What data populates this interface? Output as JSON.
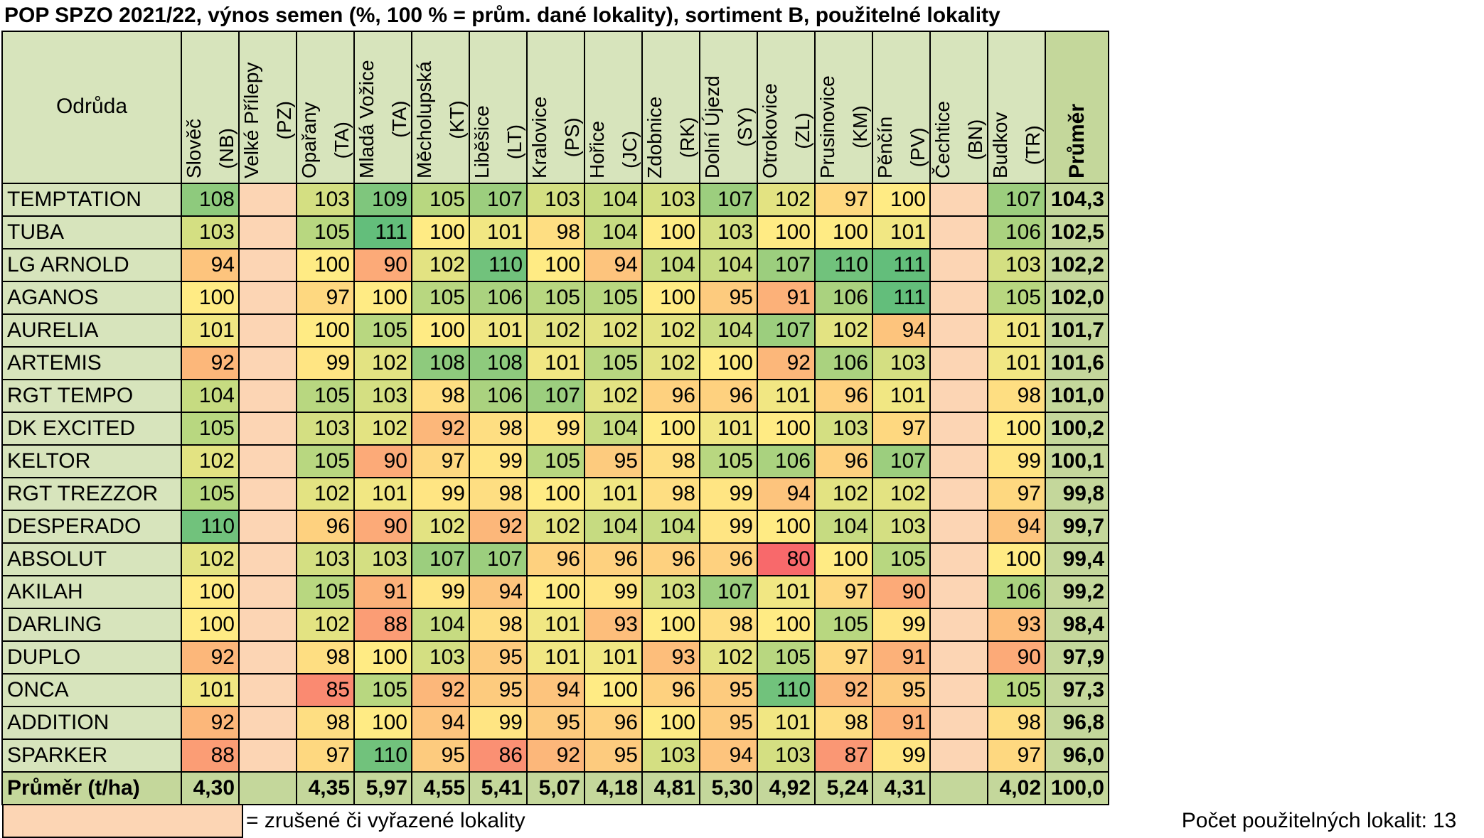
{
  "title": "POP SPZO 2021/22, výnos semen (%, 100 % = prům. dané lokality), sortiment B, použitelné lokality",
  "header": {
    "variety_label": "Odrůda",
    "average_label": "Průměr",
    "locations": [
      {
        "name": "Slověč",
        "code": "(NB)"
      },
      {
        "name": "Velké Přílepy",
        "code": "(PZ)"
      },
      {
        "name": "Opařany",
        "code": "(TA)"
      },
      {
        "name": "Mladá Vožice",
        "code": "(TA)"
      },
      {
        "name": "Měcholupská",
        "code": "(KT)"
      },
      {
        "name": "Liběšice",
        "code": "(LT)"
      },
      {
        "name": "Kralovice",
        "code": "(PS)"
      },
      {
        "name": "Hořice",
        "code": "(JC)"
      },
      {
        "name": "Zdobnice",
        "code": "(RK)"
      },
      {
        "name": "Dolní Újezd",
        "code": "(SY)"
      },
      {
        "name": "Otrokovice",
        "code": "(ZL)"
      },
      {
        "name": "Prusinovice",
        "code": "(KM)"
      },
      {
        "name": "Pěnčín",
        "code": "(PV)"
      },
      {
        "name": "Čechtice",
        "code": "(BN)"
      },
      {
        "name": "Budkov",
        "code": "(TR)"
      }
    ]
  },
  "rows": [
    {
      "variety": "TEMPTATION",
      "values": [
        "108",
        "",
        "103",
        "109",
        "105",
        "107",
        "103",
        "104",
        "103",
        "107",
        "102",
        "97",
        "100",
        "",
        "107"
      ],
      "avg": "104,3"
    },
    {
      "variety": "TUBA",
      "values": [
        "103",
        "",
        "105",
        "111",
        "100",
        "101",
        "98",
        "104",
        "100",
        "103",
        "100",
        "100",
        "101",
        "",
        "106"
      ],
      "avg": "102,5"
    },
    {
      "variety": "LG ARNOLD",
      "values": [
        "94",
        "",
        "100",
        "90",
        "102",
        "110",
        "100",
        "94",
        "104",
        "104",
        "107",
        "110",
        "111",
        "",
        "103"
      ],
      "avg": "102,2"
    },
    {
      "variety": "AGANOS",
      "values": [
        "100",
        "",
        "97",
        "100",
        "105",
        "106",
        "105",
        "105",
        "100",
        "95",
        "91",
        "106",
        "111",
        "",
        "105"
      ],
      "avg": "102,0"
    },
    {
      "variety": "AURELIA",
      "values": [
        "101",
        "",
        "100",
        "105",
        "100",
        "101",
        "102",
        "102",
        "102",
        "104",
        "107",
        "102",
        "94",
        "",
        "101"
      ],
      "avg": "101,7"
    },
    {
      "variety": "ARTEMIS",
      "values": [
        "92",
        "",
        "99",
        "102",
        "108",
        "108",
        "101",
        "105",
        "102",
        "100",
        "92",
        "106",
        "103",
        "",
        "101"
      ],
      "avg": "101,6"
    },
    {
      "variety": "RGT TEMPO",
      "values": [
        "104",
        "",
        "105",
        "103",
        "98",
        "106",
        "107",
        "102",
        "96",
        "96",
        "101",
        "96",
        "101",
        "",
        "98"
      ],
      "avg": "101,0"
    },
    {
      "variety": "DK EXCITED",
      "values": [
        "105",
        "",
        "103",
        "102",
        "92",
        "98",
        "99",
        "104",
        "100",
        "101",
        "100",
        "103",
        "97",
        "",
        "100"
      ],
      "avg": "100,2"
    },
    {
      "variety": "KELTOR",
      "values": [
        "102",
        "",
        "105",
        "90",
        "97",
        "99",
        "105",
        "95",
        "98",
        "105",
        "106",
        "96",
        "107",
        "",
        "99"
      ],
      "avg": "100,1"
    },
    {
      "variety": "RGT TREZZOR",
      "values": [
        "105",
        "",
        "102",
        "101",
        "99",
        "98",
        "100",
        "101",
        "98",
        "99",
        "94",
        "102",
        "102",
        "",
        "97"
      ],
      "avg": "99,8"
    },
    {
      "variety": "DESPERADO",
      "values": [
        "110",
        "",
        "96",
        "90",
        "102",
        "92",
        "102",
        "104",
        "104",
        "99",
        "100",
        "104",
        "103",
        "",
        "94"
      ],
      "avg": "99,7"
    },
    {
      "variety": "ABSOLUT",
      "values": [
        "102",
        "",
        "103",
        "103",
        "107",
        "107",
        "96",
        "96",
        "96",
        "96",
        "80",
        "100",
        "105",
        "",
        "100"
      ],
      "avg": "99,4"
    },
    {
      "variety": "AKILAH",
      "values": [
        "100",
        "",
        "105",
        "91",
        "99",
        "94",
        "100",
        "99",
        "103",
        "107",
        "101",
        "97",
        "90",
        "",
        "106"
      ],
      "avg": "99,2"
    },
    {
      "variety": "DARLING",
      "values": [
        "100",
        "",
        "102",
        "88",
        "104",
        "98",
        "101",
        "93",
        "100",
        "98",
        "100",
        "105",
        "99",
        "",
        "93"
      ],
      "avg": "98,4"
    },
    {
      "variety": "DUPLO",
      "values": [
        "92",
        "",
        "98",
        "100",
        "103",
        "95",
        "101",
        "101",
        "93",
        "102",
        "105",
        "97",
        "91",
        "",
        "90"
      ],
      "avg": "97,9"
    },
    {
      "variety": "ONCA",
      "values": [
        "101",
        "",
        "85",
        "105",
        "92",
        "95",
        "94",
        "100",
        "96",
        "95",
        "110",
        "92",
        "95",
        "",
        "105"
      ],
      "avg": "97,3"
    },
    {
      "variety": "ADDITION",
      "values": [
        "92",
        "",
        "98",
        "100",
        "94",
        "99",
        "95",
        "96",
        "100",
        "95",
        "101",
        "98",
        "91",
        "",
        "98"
      ],
      "avg": "96,8"
    },
    {
      "variety": "SPARKER",
      "values": [
        "88",
        "",
        "97",
        "110",
        "95",
        "86",
        "92",
        "95",
        "103",
        "94",
        "103",
        "87",
        "99",
        "",
        "97"
      ],
      "avg": "96,0"
    }
  ],
  "footer": {
    "label": "Průměr (t/ha)",
    "values": [
      "4,30",
      "",
      "4,35",
      "5,97",
      "4,55",
      "5,41",
      "5,07",
      "4,18",
      "4,81",
      "5,30",
      "4,92",
      "5,24",
      "4,31",
      "",
      "4,02"
    ],
    "avg": "100,0"
  },
  "cancelled_columns": [
    1,
    13
  ],
  "legend": {
    "text": "= zrušené či vyřazené lokality",
    "count_label": "Počet použitelných lokalit:",
    "count_value": "13"
  },
  "colors": {
    "header_bg": "#d7e4bc",
    "average_bg": "#c4d79b",
    "cancelled_bg": "#fcd5b4",
    "scale_low": "#f8696b",
    "scale_mid": "#ffeb84",
    "scale_high": "#63be7b"
  }
}
